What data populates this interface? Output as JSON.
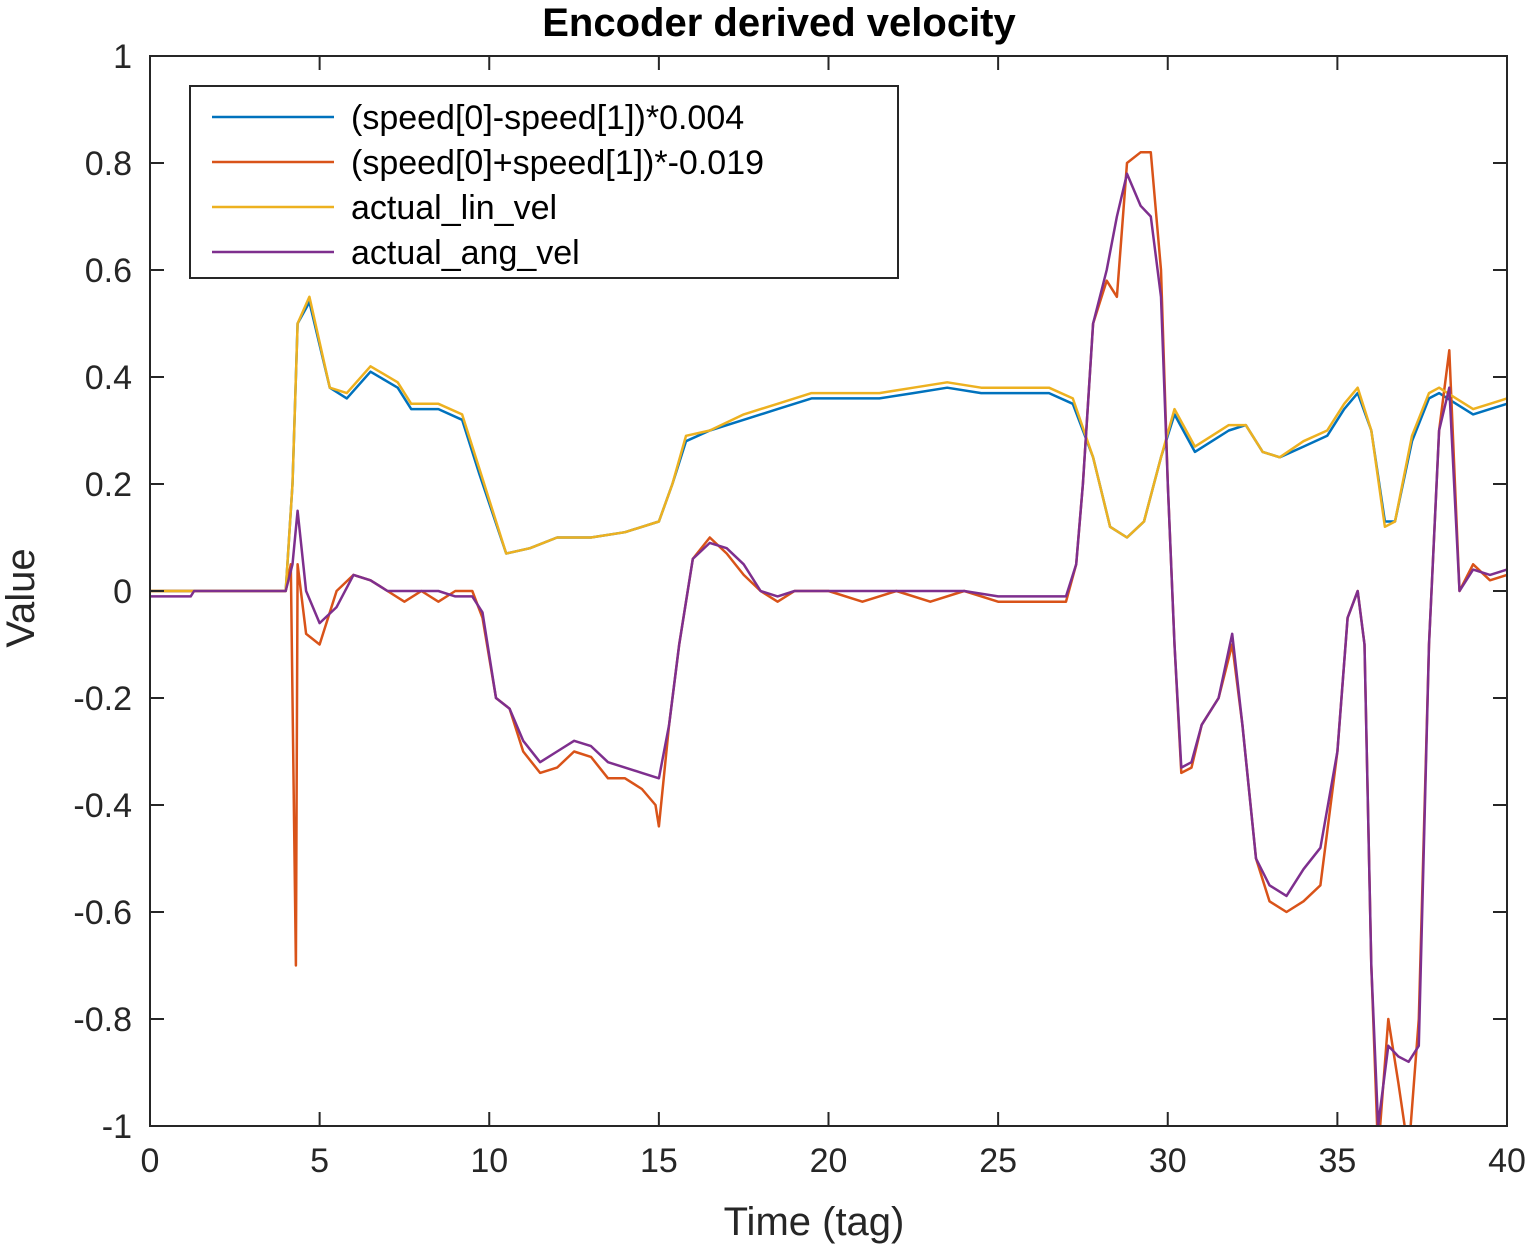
{
  "chart_data": {
    "type": "line",
    "title": "Encoder derived velocity",
    "xlabel": "Time (tag)",
    "ylabel": "Value",
    "xlim": [
      0,
      40
    ],
    "ylim": [
      -1,
      1
    ],
    "xticks": [
      "0",
      "5",
      "10",
      "15",
      "20",
      "25",
      "30",
      "35",
      "40"
    ],
    "yticks": [
      "-1",
      "-0.8",
      "-0.6",
      "-0.4",
      "-0.2",
      "0",
      "0.2",
      "0.4",
      "0.6",
      "0.8",
      "1"
    ],
    "grid": false,
    "legend_position": "top-left",
    "series": [
      {
        "name": "(speed[0]-speed[1])*0.004",
        "color": "#0072BD",
        "points": [
          [
            0,
            0
          ],
          [
            4,
            0
          ],
          [
            4.2,
            0.2
          ],
          [
            4.35,
            0.5
          ],
          [
            4.7,
            0.54
          ],
          [
            5.3,
            0.38
          ],
          [
            5.8,
            0.36
          ],
          [
            6.5,
            0.41
          ],
          [
            7.3,
            0.38
          ],
          [
            7.7,
            0.34
          ],
          [
            8.5,
            0.34
          ],
          [
            9.2,
            0.32
          ],
          [
            9.7,
            0.22
          ],
          [
            10.5,
            0.07
          ],
          [
            11.2,
            0.08
          ],
          [
            12,
            0.1
          ],
          [
            13,
            0.1
          ],
          [
            14,
            0.11
          ],
          [
            15,
            0.13
          ],
          [
            15.4,
            0.2
          ],
          [
            15.8,
            0.28
          ],
          [
            16.5,
            0.3
          ],
          [
            17.5,
            0.32
          ],
          [
            18.5,
            0.34
          ],
          [
            19.5,
            0.36
          ],
          [
            20.5,
            0.36
          ],
          [
            21.5,
            0.36
          ],
          [
            22.5,
            0.37
          ],
          [
            23.5,
            0.38
          ],
          [
            24.5,
            0.37
          ],
          [
            25.5,
            0.37
          ],
          [
            26.5,
            0.37
          ],
          [
            27.2,
            0.35
          ],
          [
            27.8,
            0.25
          ],
          [
            28.3,
            0.12
          ],
          [
            28.8,
            0.1
          ],
          [
            29.3,
            0.13
          ],
          [
            29.8,
            0.25
          ],
          [
            30.2,
            0.33
          ],
          [
            30.8,
            0.26
          ],
          [
            31.3,
            0.28
          ],
          [
            31.8,
            0.3
          ],
          [
            32.3,
            0.31
          ],
          [
            32.8,
            0.26
          ],
          [
            33.3,
            0.25
          ],
          [
            34,
            0.27
          ],
          [
            34.7,
            0.29
          ],
          [
            35.2,
            0.34
          ],
          [
            35.6,
            0.37
          ],
          [
            36,
            0.3
          ],
          [
            36.4,
            0.13
          ],
          [
            36.7,
            0.13
          ],
          [
            37.2,
            0.28
          ],
          [
            37.7,
            0.36
          ],
          [
            38,
            0.37
          ],
          [
            38.5,
            0.35
          ],
          [
            39,
            0.33
          ],
          [
            39.5,
            0.34
          ],
          [
            40,
            0.35
          ]
        ]
      },
      {
        "name": "(speed[0]+speed[1])*-0.019",
        "color": "#D95319",
        "points": [
          [
            0,
            0
          ],
          [
            4,
            0
          ],
          [
            4.15,
            0.05
          ],
          [
            4.25,
            -0.45
          ],
          [
            4.3,
            -0.7
          ],
          [
            4.35,
            0.05
          ],
          [
            4.6,
            -0.08
          ],
          [
            5,
            -0.1
          ],
          [
            5.5,
            0.0
          ],
          [
            6,
            0.03
          ],
          [
            6.5,
            0.02
          ],
          [
            7,
            0.0
          ],
          [
            7.5,
            -0.02
          ],
          [
            8,
            0.0
          ],
          [
            8.5,
            -0.02
          ],
          [
            9,
            0.0
          ],
          [
            9.5,
            0.0
          ],
          [
            9.8,
            -0.05
          ],
          [
            10.2,
            -0.2
          ],
          [
            10.6,
            -0.22
          ],
          [
            11,
            -0.3
          ],
          [
            11.5,
            -0.34
          ],
          [
            12,
            -0.33
          ],
          [
            12.5,
            -0.3
          ],
          [
            13,
            -0.31
          ],
          [
            13.5,
            -0.35
          ],
          [
            14,
            -0.35
          ],
          [
            14.5,
            -0.37
          ],
          [
            14.9,
            -0.4
          ],
          [
            15,
            -0.44
          ],
          [
            15.3,
            -0.25
          ],
          [
            15.6,
            -0.1
          ],
          [
            16,
            0.06
          ],
          [
            16.5,
            0.1
          ],
          [
            17,
            0.07
          ],
          [
            17.5,
            0.03
          ],
          [
            18,
            0.0
          ],
          [
            18.5,
            -0.02
          ],
          [
            19,
            0.0
          ],
          [
            20,
            0.0
          ],
          [
            21,
            -0.02
          ],
          [
            22,
            0.0
          ],
          [
            23,
            -0.02
          ],
          [
            24,
            0.0
          ],
          [
            25,
            -0.02
          ],
          [
            26,
            -0.02
          ],
          [
            27,
            -0.02
          ],
          [
            27.3,
            0.05
          ],
          [
            27.5,
            0.2
          ],
          [
            27.8,
            0.5
          ],
          [
            28.2,
            0.58
          ],
          [
            28.5,
            0.55
          ],
          [
            28.8,
            0.8
          ],
          [
            29.2,
            0.82
          ],
          [
            29.5,
            0.82
          ],
          [
            29.8,
            0.6
          ],
          [
            30,
            0.2
          ],
          [
            30.2,
            -0.1
          ],
          [
            30.4,
            -0.34
          ],
          [
            30.7,
            -0.33
          ],
          [
            31,
            -0.25
          ],
          [
            31.5,
            -0.2
          ],
          [
            31.9,
            -0.1
          ],
          [
            32.2,
            -0.25
          ],
          [
            32.6,
            -0.5
          ],
          [
            33,
            -0.58
          ],
          [
            33.5,
            -0.6
          ],
          [
            34,
            -0.58
          ],
          [
            34.5,
            -0.55
          ],
          [
            35,
            -0.3
          ],
          [
            35.3,
            -0.05
          ],
          [
            35.6,
            0.0
          ],
          [
            35.8,
            -0.1
          ],
          [
            36,
            -0.7
          ],
          [
            36.2,
            -1.05
          ],
          [
            36.5,
            -0.8
          ],
          [
            36.8,
            -0.92
          ],
          [
            37.1,
            -1.05
          ],
          [
            37.4,
            -0.8
          ],
          [
            37.7,
            -0.1
          ],
          [
            38,
            0.3
          ],
          [
            38.3,
            0.45
          ],
          [
            38.6,
            0.0
          ],
          [
            39,
            0.05
          ],
          [
            39.5,
            0.02
          ],
          [
            40,
            0.03
          ]
        ]
      },
      {
        "name": "actual_lin_vel",
        "color": "#EDB120",
        "points": [
          [
            0,
            0
          ],
          [
            4,
            0
          ],
          [
            4.2,
            0.2
          ],
          [
            4.35,
            0.5
          ],
          [
            4.7,
            0.55
          ],
          [
            5.3,
            0.38
          ],
          [
            5.8,
            0.37
          ],
          [
            6.5,
            0.42
          ],
          [
            7.3,
            0.39
          ],
          [
            7.7,
            0.35
          ],
          [
            8.5,
            0.35
          ],
          [
            9.2,
            0.33
          ],
          [
            9.7,
            0.23
          ],
          [
            10.5,
            0.07
          ],
          [
            11.2,
            0.08
          ],
          [
            12,
            0.1
          ],
          [
            13,
            0.1
          ],
          [
            14,
            0.11
          ],
          [
            15,
            0.13
          ],
          [
            15.4,
            0.2
          ],
          [
            15.8,
            0.29
          ],
          [
            16.5,
            0.3
          ],
          [
            17.5,
            0.33
          ],
          [
            18.5,
            0.35
          ],
          [
            19.5,
            0.37
          ],
          [
            20.5,
            0.37
          ],
          [
            21.5,
            0.37
          ],
          [
            22.5,
            0.38
          ],
          [
            23.5,
            0.39
          ],
          [
            24.5,
            0.38
          ],
          [
            25.5,
            0.38
          ],
          [
            26.5,
            0.38
          ],
          [
            27.2,
            0.36
          ],
          [
            27.8,
            0.25
          ],
          [
            28.3,
            0.12
          ],
          [
            28.8,
            0.1
          ],
          [
            29.3,
            0.13
          ],
          [
            29.8,
            0.25
          ],
          [
            30.2,
            0.34
          ],
          [
            30.8,
            0.27
          ],
          [
            31.3,
            0.29
          ],
          [
            31.8,
            0.31
          ],
          [
            32.3,
            0.31
          ],
          [
            32.8,
            0.26
          ],
          [
            33.3,
            0.25
          ],
          [
            34,
            0.28
          ],
          [
            34.7,
            0.3
          ],
          [
            35.2,
            0.35
          ],
          [
            35.6,
            0.38
          ],
          [
            36,
            0.3
          ],
          [
            36.4,
            0.12
          ],
          [
            36.7,
            0.13
          ],
          [
            37.2,
            0.29
          ],
          [
            37.7,
            0.37
          ],
          [
            38,
            0.38
          ],
          [
            38.5,
            0.36
          ],
          [
            39,
            0.34
          ],
          [
            39.5,
            0.35
          ],
          [
            40,
            0.36
          ]
        ]
      },
      {
        "name": "actual_ang_vel",
        "color": "#7E2F8E",
        "points": [
          [
            0,
            -0.01
          ],
          [
            1.2,
            -0.01
          ],
          [
            1.3,
            0
          ],
          [
            4,
            0
          ],
          [
            4.2,
            0.05
          ],
          [
            4.35,
            0.15
          ],
          [
            4.6,
            0.0
          ],
          [
            5,
            -0.06
          ],
          [
            5.5,
            -0.03
          ],
          [
            6,
            0.03
          ],
          [
            6.5,
            0.02
          ],
          [
            7,
            0.0
          ],
          [
            7.5,
            0.0
          ],
          [
            8,
            0.0
          ],
          [
            8.5,
            0.0
          ],
          [
            9,
            -0.01
          ],
          [
            9.5,
            -0.01
          ],
          [
            9.8,
            -0.04
          ],
          [
            10.2,
            -0.2
          ],
          [
            10.6,
            -0.22
          ],
          [
            11,
            -0.28
          ],
          [
            11.5,
            -0.32
          ],
          [
            12,
            -0.3
          ],
          [
            12.5,
            -0.28
          ],
          [
            13,
            -0.29
          ],
          [
            13.5,
            -0.32
          ],
          [
            14,
            -0.33
          ],
          [
            14.5,
            -0.34
          ],
          [
            15,
            -0.35
          ],
          [
            15.3,
            -0.25
          ],
          [
            15.6,
            -0.1
          ],
          [
            16,
            0.06
          ],
          [
            16.5,
            0.09
          ],
          [
            17,
            0.08
          ],
          [
            17.5,
            0.05
          ],
          [
            18,
            0.0
          ],
          [
            18.5,
            -0.01
          ],
          [
            19,
            0.0
          ],
          [
            20,
            0.0
          ],
          [
            21,
            0.0
          ],
          [
            22,
            0.0
          ],
          [
            23,
            0.0
          ],
          [
            24,
            0.0
          ],
          [
            25,
            -0.01
          ],
          [
            26,
            -0.01
          ],
          [
            27,
            -0.01
          ],
          [
            27.3,
            0.05
          ],
          [
            27.5,
            0.2
          ],
          [
            27.8,
            0.5
          ],
          [
            28.2,
            0.6
          ],
          [
            28.5,
            0.7
          ],
          [
            28.8,
            0.78
          ],
          [
            29.2,
            0.72
          ],
          [
            29.5,
            0.7
          ],
          [
            29.8,
            0.55
          ],
          [
            30,
            0.2
          ],
          [
            30.2,
            -0.1
          ],
          [
            30.4,
            -0.33
          ],
          [
            30.7,
            -0.32
          ],
          [
            31,
            -0.25
          ],
          [
            31.5,
            -0.2
          ],
          [
            31.9,
            -0.08
          ],
          [
            32.2,
            -0.25
          ],
          [
            32.6,
            -0.5
          ],
          [
            33,
            -0.55
          ],
          [
            33.5,
            -0.57
          ],
          [
            34,
            -0.52
          ],
          [
            34.5,
            -0.48
          ],
          [
            35,
            -0.3
          ],
          [
            35.3,
            -0.05
          ],
          [
            35.6,
            0.0
          ],
          [
            35.8,
            -0.1
          ],
          [
            36,
            -0.7
          ],
          [
            36.2,
            -1.0
          ],
          [
            36.5,
            -0.85
          ],
          [
            36.8,
            -0.87
          ],
          [
            37.1,
            -0.88
          ],
          [
            37.4,
            -0.85
          ],
          [
            37.7,
            -0.1
          ],
          [
            38,
            0.3
          ],
          [
            38.3,
            0.38
          ],
          [
            38.6,
            0.0
          ],
          [
            39,
            0.04
          ],
          [
            39.5,
            0.03
          ],
          [
            40,
            0.04
          ]
        ]
      }
    ]
  }
}
